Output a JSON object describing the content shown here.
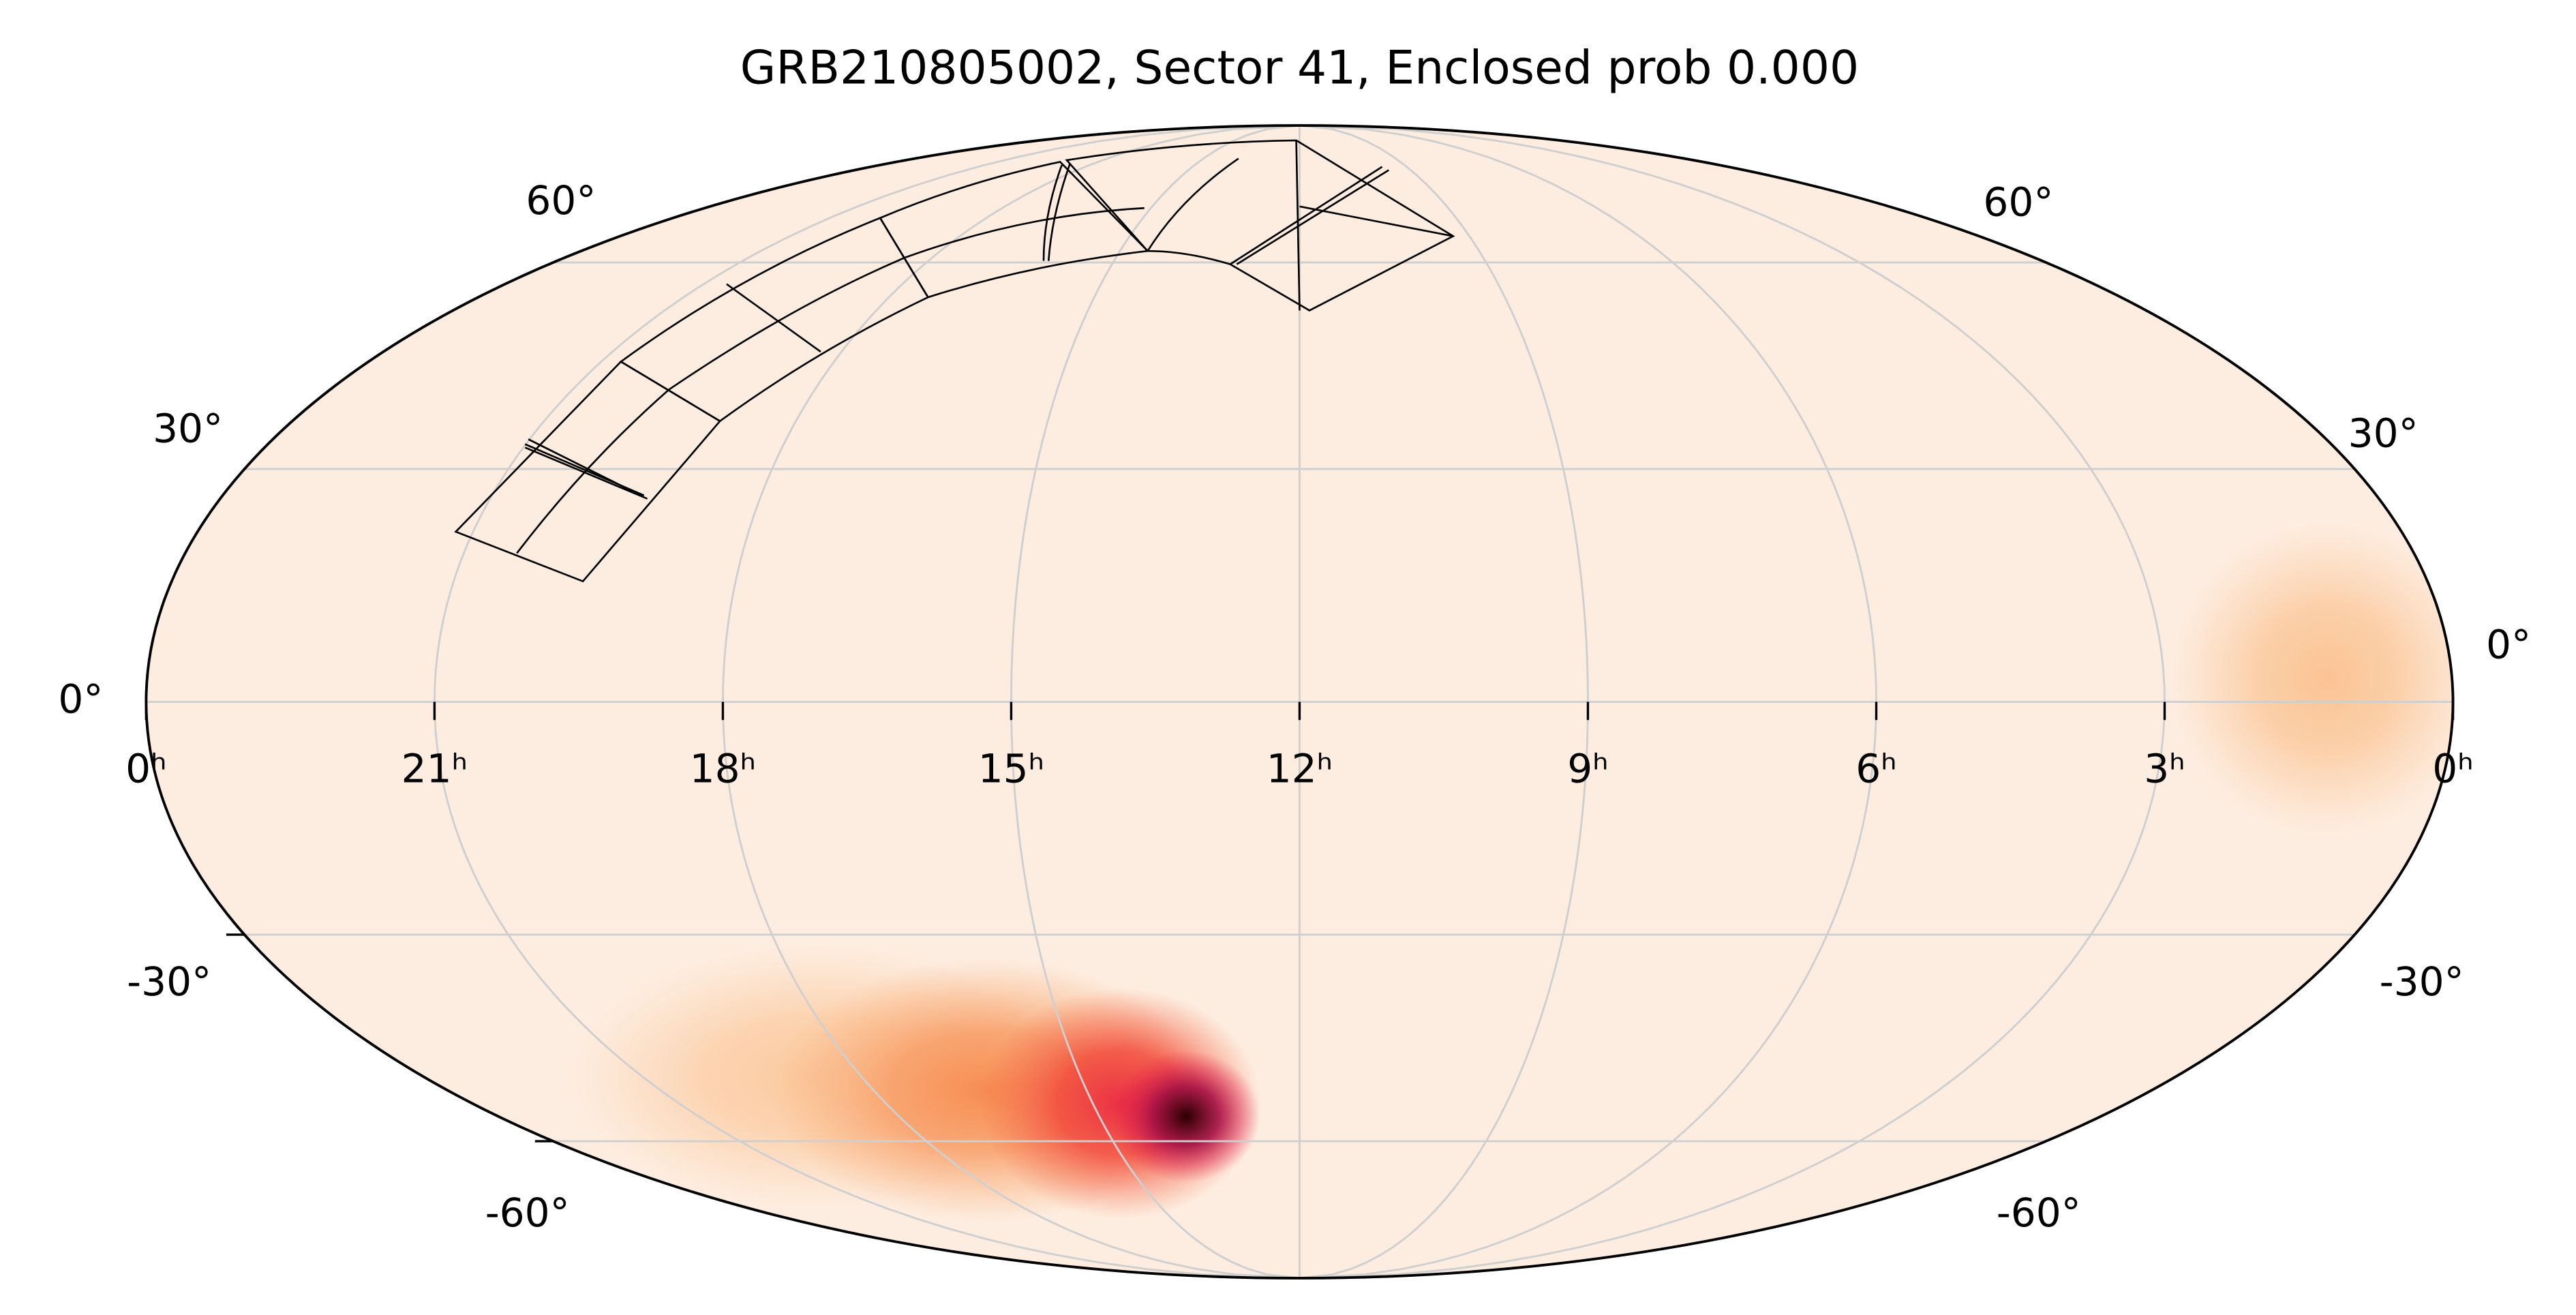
{
  "chart_data": {
    "type": "mollweide",
    "title": "GRB210805002, Sector 41, Enclosed prob 0.000",
    "xlim": [
      24,
      0
    ],
    "ylim": [
      -90,
      90
    ],
    "xticks": [
      {
        "value": 24,
        "label": "0ʰ"
      },
      {
        "value": 21,
        "label": "21ʰ"
      },
      {
        "value": 18,
        "label": "18ʰ"
      },
      {
        "value": 15,
        "label": "15ʰ"
      },
      {
        "value": 12,
        "label": "12ʰ"
      },
      {
        "value": 9,
        "label": "9ʰ"
      },
      {
        "value": 6,
        "label": "6ʰ"
      },
      {
        "value": 3,
        "label": "3ʰ"
      },
      {
        "value": 0,
        "label": "0ʰ"
      }
    ],
    "yticks": [
      {
        "value": -60,
        "label": "-60°"
      },
      {
        "value": -30,
        "label": "-30°"
      },
      {
        "value": 0,
        "label": "0°"
      },
      {
        "value": 30,
        "label": "30°"
      },
      {
        "value": 60,
        "label": "60°"
      }
    ],
    "grid": true,
    "background_color": "#fdede0",
    "peaks": [
      {
        "ra": 18.6,
        "dec": -50,
        "level": 0.12
      },
      {
        "ra": 1.3,
        "dec": 3,
        "level": 0.14
      },
      {
        "ra": 16.4,
        "dec": -52,
        "level": 0.3
      },
      {
        "ra": 14.6,
        "dec": -54,
        "level": 0.6
      },
      {
        "ra": 13.7,
        "dec": -56,
        "level": 1
      }
    ]
  }
}
